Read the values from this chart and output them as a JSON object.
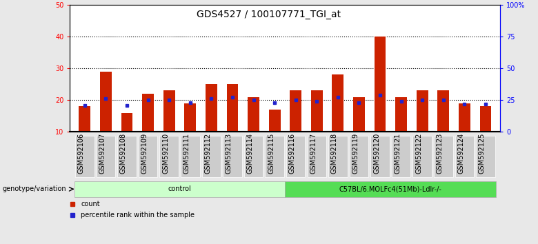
{
  "title": "GDS4527 / 100107771_TGI_at",
  "samples": [
    "GSM592106",
    "GSM592107",
    "GSM592108",
    "GSM592109",
    "GSM592110",
    "GSM592111",
    "GSM592112",
    "GSM592113",
    "GSM592114",
    "GSM592115",
    "GSM592116",
    "GSM592117",
    "GSM592118",
    "GSM592119",
    "GSM592120",
    "GSM592121",
    "GSM592122",
    "GSM592123",
    "GSM592124",
    "GSM592125"
  ],
  "counts": [
    18,
    29,
    16,
    22,
    23,
    19,
    25,
    25,
    21,
    17,
    23,
    23,
    28,
    21,
    40,
    21,
    23,
    23,
    19,
    18
  ],
  "percentile_ranks": [
    21,
    26,
    21,
    25,
    25,
    23,
    26,
    27,
    25,
    23,
    25,
    24,
    27,
    23,
    29,
    24,
    25,
    25,
    22,
    22
  ],
  "ylim_left": [
    10,
    50
  ],
  "ylim_right": [
    0,
    100
  ],
  "yticks_left": [
    10,
    20,
    30,
    40,
    50
  ],
  "yticks_right": [
    0,
    25,
    50,
    75,
    100
  ],
  "ytick_labels_right": [
    "0",
    "25",
    "50",
    "75",
    "100%"
  ],
  "bar_color": "#cc2200",
  "square_color": "#2222cc",
  "grid_color": "black",
  "groups": [
    {
      "label": "control",
      "start": 0,
      "end": 10,
      "color": "#ccffcc"
    },
    {
      "label": "C57BL/6.MOLFc4(51Mb)-Ldlr-/-",
      "start": 10,
      "end": 20,
      "color": "#55dd55"
    }
  ],
  "xlabel_group": "genotype/variation",
  "legend_count_label": "count",
  "legend_pct_label": "percentile rank within the sample",
  "background_color": "#e8e8e8",
  "plot_bg_color": "#ffffff",
  "title_fontsize": 10,
  "tick_fontsize": 7,
  "label_fontsize": 8,
  "grid_yticks": [
    20,
    30,
    40
  ]
}
